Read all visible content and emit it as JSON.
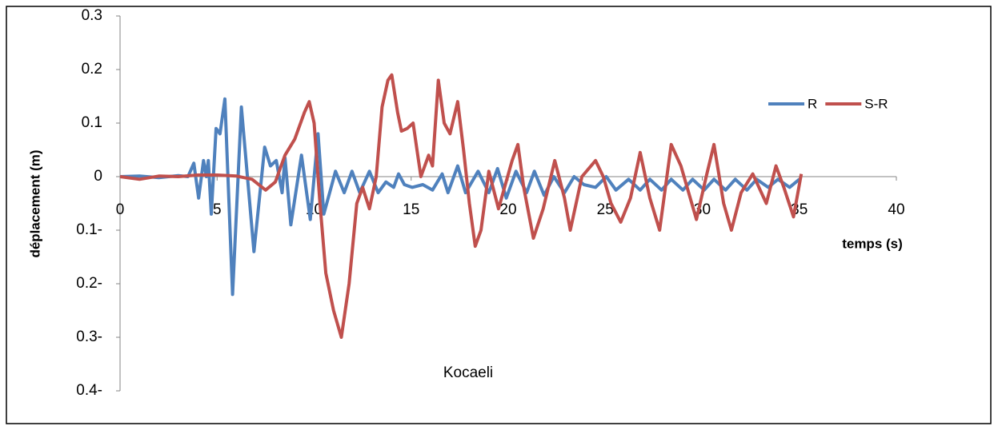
{
  "chart_data": {
    "type": "line",
    "y_label": "déplacement (m)",
    "x_label": "temps   (s)",
    "annotation": "Kocaeli",
    "legend": "right",
    "xlim": [
      0,
      40
    ],
    "xticks": [
      0,
      5,
      10,
      15,
      20,
      25,
      30,
      35,
      40
    ],
    "ylim": [
      -0.4,
      0.3
    ],
    "yticks": [
      {
        "value": -0.4,
        "label": "0.4-"
      },
      {
        "value": -0.3,
        "label": "0.3-"
      },
      {
        "value": -0.2,
        "label": "0.2-"
      },
      {
        "value": -0.1,
        "label": "0.1-"
      },
      0,
      0.1,
      0.2,
      0.3
    ],
    "series": [
      {
        "name": "R",
        "color": "#4f81bd",
        "x": [
          0,
          1,
          2,
          3,
          3.5,
          3.8,
          4.05,
          4.3,
          4.45,
          4.55,
          4.7,
          4.95,
          5.15,
          5.4,
          5.8,
          6.25,
          6.9,
          7.45,
          7.75,
          8.05,
          8.35,
          8.5,
          8.8,
          9.35,
          9.8,
          10.2,
          10.5,
          11.1,
          11.55,
          11.95,
          12.35,
          12.85,
          13.3,
          13.7,
          14.1,
          14.35,
          14.65,
          15.05,
          15.6,
          16.1,
          16.6,
          16.9,
          17.4,
          17.8,
          18.45,
          19,
          19.45,
          19.9,
          20.4,
          20.95,
          21.35,
          21.85,
          22.35,
          22.9,
          23.4,
          23.9,
          24.5,
          25.05,
          25.55,
          26.2,
          26.8,
          27.3,
          27.9,
          28.4,
          29,
          29.5,
          30.1,
          30.6,
          31.2,
          31.7,
          32.3,
          32.8,
          33.4,
          33.9,
          34.5,
          35
        ],
        "values": [
          0,
          0.001,
          -0.002,
          0.002,
          0,
          0.025,
          -0.04,
          0.03,
          0,
          0.03,
          -0.07,
          0.09,
          0.08,
          0.145,
          -0.22,
          0.13,
          -0.14,
          0.055,
          0.02,
          0.03,
          -0.03,
          0.035,
          -0.09,
          0.04,
          -0.08,
          0.08,
          -0.07,
          0.01,
          -0.03,
          0.01,
          -0.03,
          0.01,
          -0.03,
          -0.01,
          -0.02,
          0.005,
          -0.015,
          -0.02,
          -0.015,
          -0.025,
          0.005,
          -0.03,
          0.02,
          -0.03,
          0.01,
          -0.03,
          0.015,
          -0.04,
          0.01,
          -0.03,
          0.01,
          -0.035,
          0,
          -0.03,
          0,
          -0.015,
          -0.02,
          0,
          -0.025,
          -0.005,
          -0.025,
          -0.005,
          -0.025,
          -0.005,
          -0.025,
          -0.005,
          -0.025,
          -0.005,
          -0.025,
          -0.005,
          -0.025,
          -0.005,
          -0.02,
          -0.005,
          -0.02,
          -0.005
        ]
      },
      {
        "name": "S-R",
        "color": "#c0504d",
        "x": [
          0,
          1,
          2,
          3,
          4,
          5,
          6,
          6.8,
          7.5,
          8,
          8.5,
          9,
          9.5,
          9.75,
          10,
          10.3,
          10.6,
          11,
          11.4,
          11.8,
          12.2,
          12.5,
          12.85,
          13.2,
          13.5,
          13.8,
          14,
          14.3,
          14.5,
          14.8,
          15.1,
          15.3,
          15.5,
          15.9,
          16.1,
          16.4,
          16.7,
          17,
          17.4,
          17.7,
          18,
          18.3,
          18.6,
          19,
          19.5,
          20.2,
          20.5,
          20.8,
          21.3,
          21.8,
          22.4,
          22.9,
          23.2,
          23.8,
          24.5,
          24.9,
          25.3,
          25.8,
          26.3,
          26.8,
          27.3,
          27.8,
          28.4,
          28.9,
          29.3,
          29.7,
          30.2,
          30.6,
          31.1,
          31.5,
          32,
          32.6,
          33.3,
          33.8,
          34.2,
          34.7,
          35.1
        ],
        "values": [
          0,
          -0.005,
          0.001,
          0,
          0.003,
          0.003,
          0.001,
          -0.005,
          -0.025,
          -0.01,
          0.04,
          0.07,
          0.12,
          0.14,
          0.1,
          -0.05,
          -0.18,
          -0.25,
          -0.3,
          -0.2,
          -0.05,
          -0.02,
          -0.06,
          0,
          0.13,
          0.18,
          0.19,
          0.12,
          0.085,
          0.09,
          0.1,
          0.05,
          0,
          0.04,
          0.02,
          0.18,
          0.1,
          0.08,
          0.14,
          0.05,
          -0.05,
          -0.13,
          -0.1,
          0.01,
          -0.06,
          0.03,
          0.06,
          -0.02,
          -0.115,
          -0.06,
          0.03,
          -0.04,
          -0.1,
          0,
          0.03,
          0,
          -0.05,
          -0.085,
          -0.04,
          0.045,
          -0.04,
          -0.1,
          0.06,
          0.02,
          -0.03,
          -0.08,
          0,
          0.06,
          -0.05,
          -0.1,
          -0.03,
          0.005,
          -0.05,
          0.02,
          -0.02,
          -0.075,
          0.005
        ]
      }
    ]
  }
}
